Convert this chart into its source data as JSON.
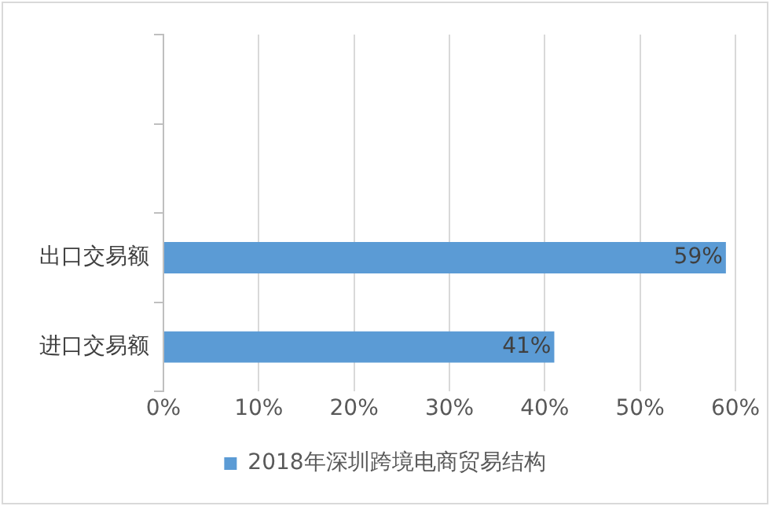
{
  "chart_data": {
    "type": "bar",
    "orientation": "horizontal",
    "categories": [
      null,
      null,
      "出口交易额",
      "进口交易额"
    ],
    "series": [
      {
        "name": "2018年深圳跨境电商贸易结构",
        "color": "#5b9bd5",
        "values": [
          null,
          null,
          59,
          41
        ],
        "value_labels": [
          null,
          null,
          "59%",
          "41%"
        ]
      }
    ],
    "xlim": [
      0,
      60
    ],
    "xticks": [
      {
        "value": 0,
        "label": "0%"
      },
      {
        "value": 10,
        "label": "10%"
      },
      {
        "value": 20,
        "label": "20%"
      },
      {
        "value": 30,
        "label": "30%"
      },
      {
        "value": 40,
        "label": "40%"
      },
      {
        "value": 50,
        "label": "50%"
      },
      {
        "value": 60,
        "label": "60%"
      }
    ],
    "grid": "x",
    "legend": "bottom"
  }
}
